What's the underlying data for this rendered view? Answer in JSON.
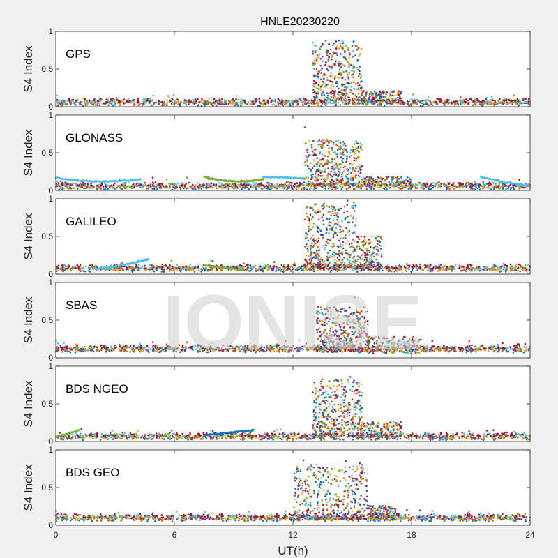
{
  "chart_data": {
    "type": "scatter",
    "title": "HNLE20230220",
    "xlabel": "UT(h)",
    "ylabel": "S4 Index",
    "xlim": [
      0,
      24
    ],
    "xticks": [
      "0",
      "6",
      "12",
      "18",
      "24"
    ],
    "ylim": [
      0,
      1
    ],
    "yticks": [
      "0",
      "0.5",
      "1"
    ],
    "watermark": "IONISE",
    "series_colors": [
      "#0072BD",
      "#D95319",
      "#EDB120",
      "#7E2F8E",
      "#77AC30",
      "#4DBEEE",
      "#A2142F"
    ],
    "panels": [
      {
        "label": "GPS",
        "baseline": 0.06,
        "storm": {
          "start": 13.0,
          "end": 15.5,
          "peak": 0.8
        },
        "tail": {
          "start": 15.5,
          "end": 17.5,
          "level": 0.15
        },
        "arcs": []
      },
      {
        "label": "GLONASS",
        "baseline": 0.06,
        "storm": {
          "start": 12.6,
          "end": 15.5,
          "peak": 0.6
        },
        "tail": {
          "start": 15.5,
          "end": 18.0,
          "level": 0.12
        },
        "arcs": [
          {
            "start": 0.0,
            "end": 4.3,
            "from": 0.17,
            "mid": 0.08,
            "to": 0.15,
            "color": 5
          },
          {
            "start": 7.5,
            "end": 10.5,
            "from": 0.18,
            "mid": 0.08,
            "to": 0.15,
            "color": 4
          },
          {
            "start": 10.5,
            "end": 12.6,
            "from": 0.18,
            "mid": 0.17,
            "to": 0.16,
            "color": 5
          },
          {
            "start": 21.5,
            "end": 24.0,
            "from": 0.18,
            "mid": 0.1,
            "to": 0.06,
            "color": 5
          }
        ]
      },
      {
        "label": "GALILEO",
        "baseline": 0.08,
        "storm": {
          "start": 12.6,
          "end": 15.2,
          "peak": 0.85
        },
        "tail": {
          "start": 15.2,
          "end": 16.5,
          "level": 0.45
        },
        "arcs": [
          {
            "start": 2.0,
            "end": 4.7,
            "from": 0.07,
            "mid": 0.1,
            "to": 0.2,
            "color": 5
          },
          {
            "start": 7.5,
            "end": 9.5,
            "from": 0.12,
            "mid": 0.08,
            "to": 0.06,
            "color": 4
          }
        ]
      },
      {
        "label": "SBAS",
        "baseline": 0.12,
        "storm": {
          "start": 13.2,
          "end": 15.8,
          "peak": 0.6
        },
        "tail": {
          "start": 15.8,
          "end": 18.5,
          "level": 0.22
        },
        "arcs": []
      },
      {
        "label": "BDS NGEO",
        "baseline": 0.07,
        "storm": {
          "start": 13.0,
          "end": 15.5,
          "peak": 0.75
        },
        "tail": {
          "start": 15.5,
          "end": 17.5,
          "level": 0.2
        },
        "arcs": [
          {
            "start": 7.5,
            "end": 10.0,
            "from": 0.08,
            "mid": 0.12,
            "to": 0.15,
            "color": 0
          },
          {
            "start": 0.0,
            "end": 1.2,
            "from": 0.06,
            "mid": 0.1,
            "to": 0.15,
            "color": 4
          }
        ]
      },
      {
        "label": "BDS GEO",
        "baseline": 0.1,
        "storm": {
          "start": 12.0,
          "end": 15.8,
          "peak": 0.7
        },
        "tail": {
          "start": 15.8,
          "end": 17.2,
          "level": 0.2
        },
        "arcs": []
      }
    ]
  }
}
